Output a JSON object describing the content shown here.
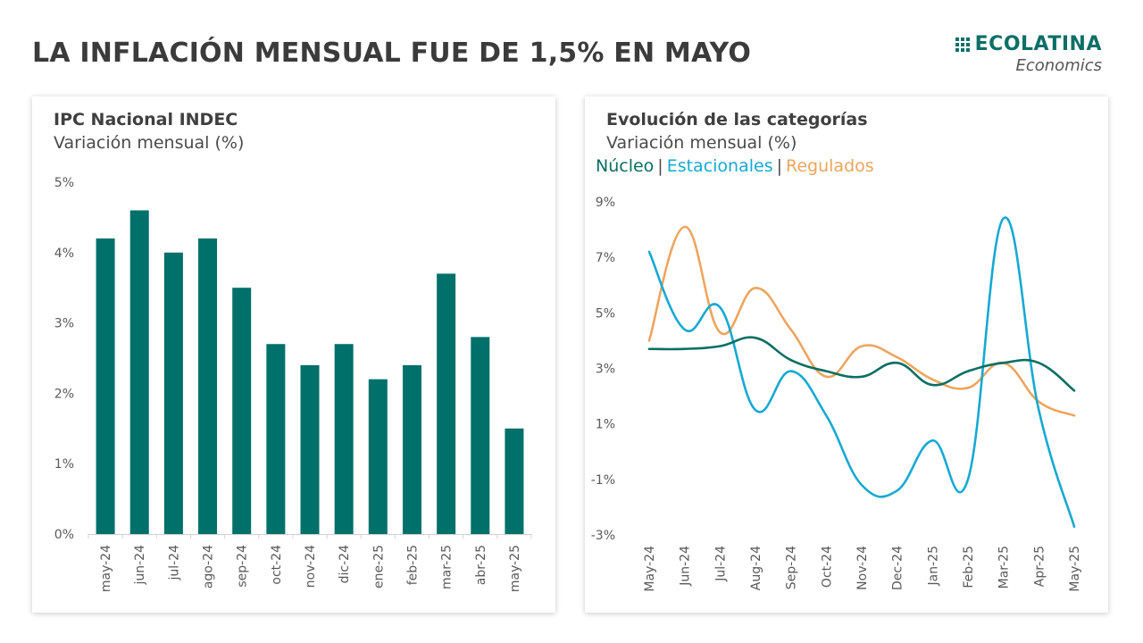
{
  "header": {
    "title": "LA INFLACIÓN MENSUAL FUE DE 1,5% EN MAYO",
    "logo_name": "ECOLATINA",
    "logo_sub": "Economics"
  },
  "colors": {
    "bar": "#00706a",
    "nucleo": "#0a6e63",
    "estacionales": "#16a9d3",
    "regulados": "#eda55e"
  },
  "left_card": {
    "title": "IPC Nacional INDEC",
    "subtitle": "Variación mensual (%)"
  },
  "right_card": {
    "title": "Evolución de las categorías",
    "subtitle": "Variación mensual (%)",
    "legend": [
      "Núcleo",
      "Estacionales",
      "Regulados"
    ]
  },
  "chart_data": [
    {
      "type": "bar",
      "title": "IPC Nacional INDEC",
      "subtitle": "Variación mensual (%)",
      "categories": [
        "may-24",
        "jun-24",
        "jul-24",
        "ago-24",
        "sep-24",
        "oct-24",
        "nov-24",
        "dic-24",
        "ene-25",
        "feb-25",
        "mar-25",
        "abr-25",
        "may-25"
      ],
      "values": [
        4.2,
        4.6,
        4.0,
        4.2,
        3.5,
        2.7,
        2.4,
        2.7,
        2.2,
        2.4,
        3.7,
        2.8,
        1.5
      ],
      "ylim": [
        0,
        5
      ],
      "yticks": [
        "0%",
        "1%",
        "2%",
        "3%",
        "4%",
        "5%"
      ],
      "grid": false
    },
    {
      "type": "line",
      "title": "Evolución de las categorías",
      "subtitle": "Variación mensual (%)",
      "categories": [
        "May-24",
        "Jun-24",
        "Jul-24",
        "Aug-24",
        "Sep-24",
        "Oct-24",
        "Nov-24",
        "Dec-24",
        "Jan-25",
        "Feb-25",
        "Mar-25",
        "Apr-25",
        "May-25"
      ],
      "series": [
        {
          "name": "Núcleo",
          "values": [
            3.7,
            3.7,
            3.8,
            4.1,
            3.3,
            2.9,
            2.7,
            3.2,
            2.4,
            2.9,
            3.2,
            3.2,
            2.2
          ]
        },
        {
          "name": "Estacionales",
          "values": [
            7.2,
            4.4,
            5.2,
            1.5,
            2.9,
            1.3,
            -1.2,
            -1.4,
            0.4,
            -1.0,
            8.4,
            1.5,
            -2.7
          ]
        },
        {
          "name": "Regulados",
          "values": [
            4.0,
            8.1,
            4.3,
            5.9,
            4.4,
            2.7,
            3.8,
            3.4,
            2.6,
            2.3,
            3.2,
            1.8,
            1.3
          ]
        }
      ],
      "ylim": [
        -3,
        9
      ],
      "yticks": [
        "-3%",
        "-1%",
        "1%",
        "3%",
        "5%",
        "7%",
        "9%"
      ],
      "grid": false
    }
  ]
}
